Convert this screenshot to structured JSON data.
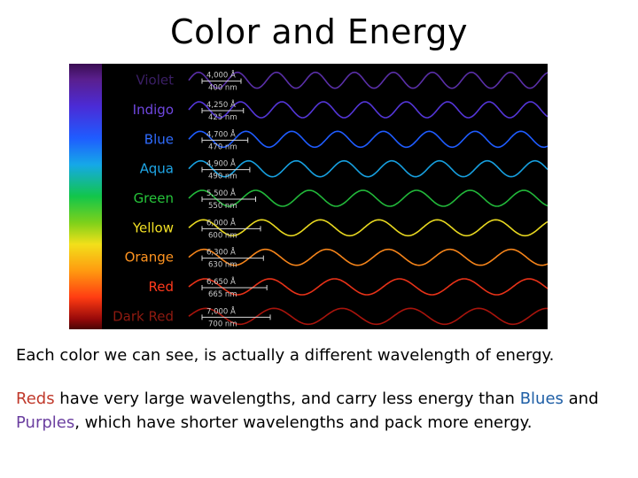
{
  "slide": {
    "title": "Color and Energy"
  },
  "figure": {
    "bands": [
      {
        "label": "Violet",
        "angstrom": "4,000 Å",
        "nm": "400 nm",
        "wavelength_nm": 400,
        "color": "#3b1f66",
        "wave_color": "#5a2fa8"
      },
      {
        "label": "Indigo",
        "angstrom": "4,250 Å",
        "nm": "425 nm",
        "wavelength_nm": 425,
        "color": "#6f47e0",
        "wave_color": "#5436d8"
      },
      {
        "label": "Blue",
        "angstrom": "4,700 Å",
        "nm": "470 nm",
        "wavelength_nm": 470,
        "color": "#2f6cff",
        "wave_color": "#1f5cff"
      },
      {
        "label": "Aqua",
        "angstrom": "4,900 Å",
        "nm": "490 nm",
        "wavelength_nm": 490,
        "color": "#1fa6e6",
        "wave_color": "#17a0e0"
      },
      {
        "label": "Green",
        "angstrom": "5,500 Å",
        "nm": "550 nm",
        "wavelength_nm": 550,
        "color": "#26c43a",
        "wave_color": "#22b83a"
      },
      {
        "label": "Yellow",
        "angstrom": "6,000 Å",
        "nm": "600 nm",
        "wavelength_nm": 600,
        "color": "#f2e025",
        "wave_color": "#e8d820"
      },
      {
        "label": "Orange",
        "angstrom": "6,300 Å",
        "nm": "630 nm",
        "wavelength_nm": 630,
        "color": "#ff9420",
        "wave_color": "#f5841a"
      },
      {
        "label": "Red",
        "angstrom": "6,650 Å",
        "nm": "665 nm",
        "wavelength_nm": 665,
        "color": "#ff3a1c",
        "wave_color": "#e83218"
      },
      {
        "label": "Dark Red",
        "angstrom": "7,000 Å",
        "nm": "700 nm",
        "wavelength_nm": 700,
        "color": "#8e1a10",
        "wave_color": "#a8140c"
      }
    ]
  },
  "body": {
    "line1": "Each color we can see, is actually a different wavelength of energy.",
    "line2": {
      "reds": "Reds",
      "t1": " have very large wavelengths, and carry less energy than ",
      "blues": "Blues",
      "t2": " and ",
      "purples": "Purples",
      "t3": ", which have shorter wavelengths and pack more energy."
    },
    "colors": {
      "reds": "#c0392b",
      "blues": "#1f5fa6",
      "purples": "#6b3fa0"
    }
  }
}
